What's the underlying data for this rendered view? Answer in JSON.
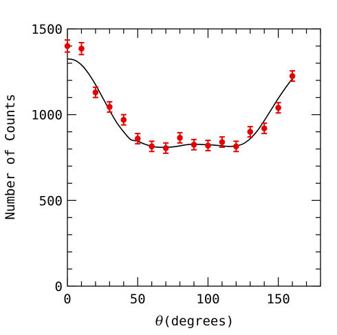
{
  "chart_data": {
    "type": "scatter",
    "title": "",
    "xlabel": "θ(degrees)",
    "xlabel_symbol": "θ",
    "xlabel_unit": "(degrees)",
    "ylabel": "Number of Counts",
    "xlim": [
      0,
      180
    ],
    "ylim": [
      0,
      1500
    ],
    "xticks": [
      0,
      50,
      100,
      150
    ],
    "yticks": [
      0,
      500,
      1000,
      1500
    ],
    "xtick_labels": [
      "0",
      "50",
      "100",
      "150"
    ],
    "ytick_labels": [
      "0",
      "500",
      "1000",
      "1500"
    ],
    "grid": false,
    "legend": "none",
    "series": [
      {
        "kind": "points-with-errorbars",
        "color": "#e00000",
        "x": [
          0,
          10,
          20,
          30,
          40,
          50,
          60,
          70,
          80,
          90,
          100,
          110,
          120,
          130,
          140,
          150,
          160
        ],
        "y": [
          1400,
          1385,
          1130,
          1045,
          970,
          860,
          815,
          805,
          865,
          825,
          820,
          840,
          815,
          900,
          920,
          1040,
          1225
        ],
        "yerr": [
          35,
          35,
          30,
          30,
          30,
          30,
          30,
          30,
          30,
          30,
          30,
          30,
          30,
          30,
          30,
          30,
          30
        ]
      },
      {
        "kind": "fit-curve",
        "color": "#000000",
        "x": [
          0,
          5,
          10,
          15,
          20,
          25,
          30,
          35,
          40,
          45,
          50,
          55,
          60,
          65,
          70,
          75,
          80,
          85,
          90,
          95,
          100,
          105,
          110,
          115,
          120,
          125,
          130,
          135,
          140,
          145,
          150,
          155,
          160
        ],
        "y": [
          1325,
          1318,
          1290,
          1240,
          1175,
          1100,
          1025,
          955,
          900,
          855,
          845,
          828,
          815,
          810,
          810,
          812,
          818,
          825,
          828,
          826,
          825,
          822,
          818,
          815,
          818,
          830,
          860,
          905,
          965,
          1030,
          1095,
          1155,
          1210
        ]
      }
    ]
  }
}
